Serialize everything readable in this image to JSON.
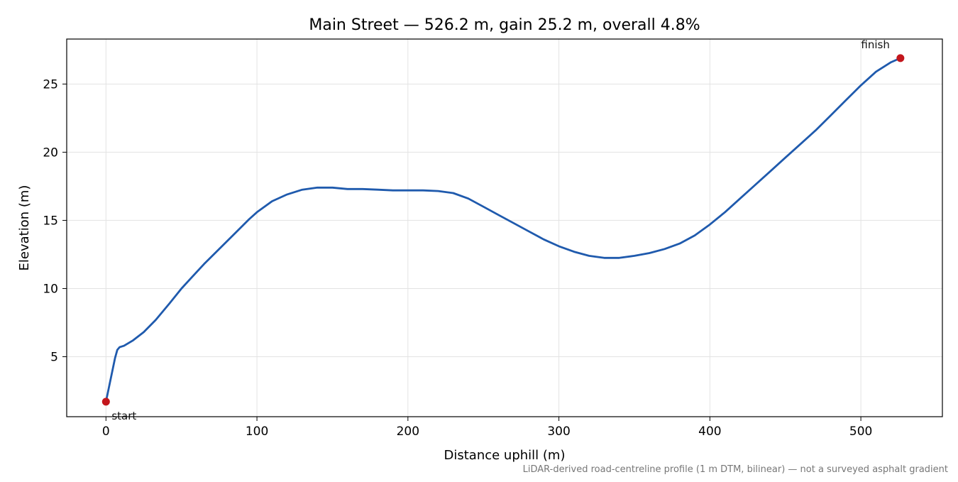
{
  "chart_data": {
    "type": "line",
    "title": "Main Street — 526.2 m, gain 25.2 m, overall 4.8%",
    "xlabel": "Distance uphill (m)",
    "ylabel": "Elevation (m)",
    "xlim": [
      -26,
      554
    ],
    "ylim": [
      0.6,
      28.3
    ],
    "x_ticks": [
      0,
      100,
      200,
      300,
      400,
      500
    ],
    "y_ticks": [
      5,
      10,
      15,
      20,
      25
    ],
    "grid": true,
    "footnote": "LiDAR-derived road-centreline profile (1 m DTM, bilinear) — not a surveyed asphalt gradient",
    "series": [
      {
        "color": "#1f5aad",
        "x": [
          0,
          3,
          6,
          7.5,
          9,
          12,
          18,
          25,
          33,
          42,
          50,
          55,
          65,
          75,
          85,
          95,
          100,
          110,
          120,
          130,
          140,
          150,
          160,
          170,
          180,
          190,
          200,
          210,
          220,
          230,
          240,
          250,
          260,
          270,
          280,
          290,
          300,
          310,
          320,
          330,
          340,
          350,
          360,
          370,
          380,
          390,
          400,
          410,
          420,
          430,
          440,
          450,
          460,
          470,
          480,
          490,
          500,
          510,
          520,
          526.2
        ],
        "y": [
          1.7,
          3.3,
          4.9,
          5.5,
          5.7,
          5.8,
          6.2,
          6.8,
          7.7,
          8.9,
          10.0,
          10.6,
          11.8,
          12.9,
          14.0,
          15.1,
          15.6,
          16.4,
          16.9,
          17.25,
          17.4,
          17.4,
          17.3,
          17.3,
          17.25,
          17.2,
          17.2,
          17.2,
          17.15,
          17.0,
          16.6,
          16.0,
          15.4,
          14.8,
          14.2,
          13.6,
          13.1,
          12.7,
          12.4,
          12.25,
          12.25,
          12.4,
          12.6,
          12.9,
          13.3,
          13.9,
          14.7,
          15.6,
          16.6,
          17.6,
          18.6,
          19.6,
          20.6,
          21.6,
          22.7,
          23.8,
          24.9,
          25.9,
          26.6,
          26.9
        ]
      }
    ],
    "markers": [
      {
        "label": "start",
        "x": 0,
        "y": 1.7,
        "color": "#c3161c"
      },
      {
        "label": "finish",
        "x": 526.2,
        "y": 26.9,
        "color": "#c3161c"
      }
    ]
  }
}
